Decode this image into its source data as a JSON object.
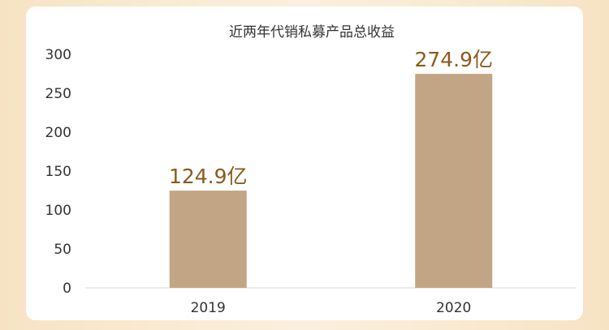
{
  "chart_data": {
    "type": "bar",
    "title": "近两年代销私募产品总收益",
    "categories": [
      "2019",
      "2020"
    ],
    "values": [
      124.9,
      274.9
    ],
    "data_labels": [
      "124.9亿",
      "274.9亿"
    ],
    "ylim": [
      0,
      300
    ],
    "yticks": [
      "0",
      "50",
      "100",
      "150",
      "200",
      "250",
      "300"
    ],
    "grid": false,
    "legend": "none",
    "bar_color": "#c2a584",
    "label_color": "#8a5a1c",
    "axis_color": "#d9d9d9"
  }
}
